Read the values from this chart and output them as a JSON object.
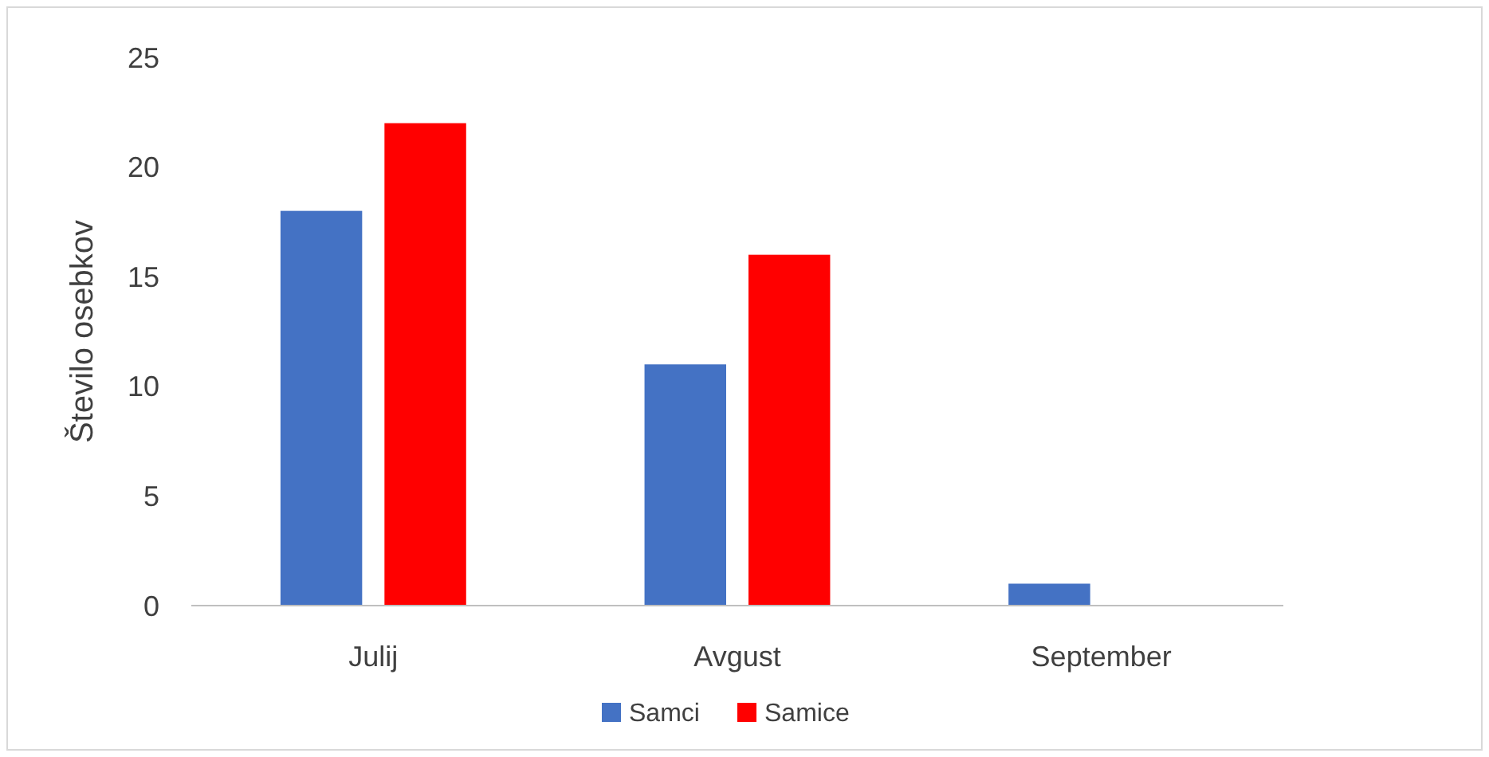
{
  "chart_data": {
    "type": "bar",
    "ylabel": "Število osebkov",
    "categories": [
      "Julij",
      "Avgust",
      "September"
    ],
    "series": [
      {
        "name": "Samci",
        "color": "#4472c4",
        "values": [
          18,
          11,
          1
        ]
      },
      {
        "name": "Samice",
        "color": "#ff0000",
        "values": [
          22,
          16,
          0
        ]
      }
    ],
    "ylim": [
      0,
      25
    ],
    "yticks": [
      0,
      5,
      10,
      15,
      20,
      25
    ],
    "grid": false,
    "legend": "bottom"
  }
}
